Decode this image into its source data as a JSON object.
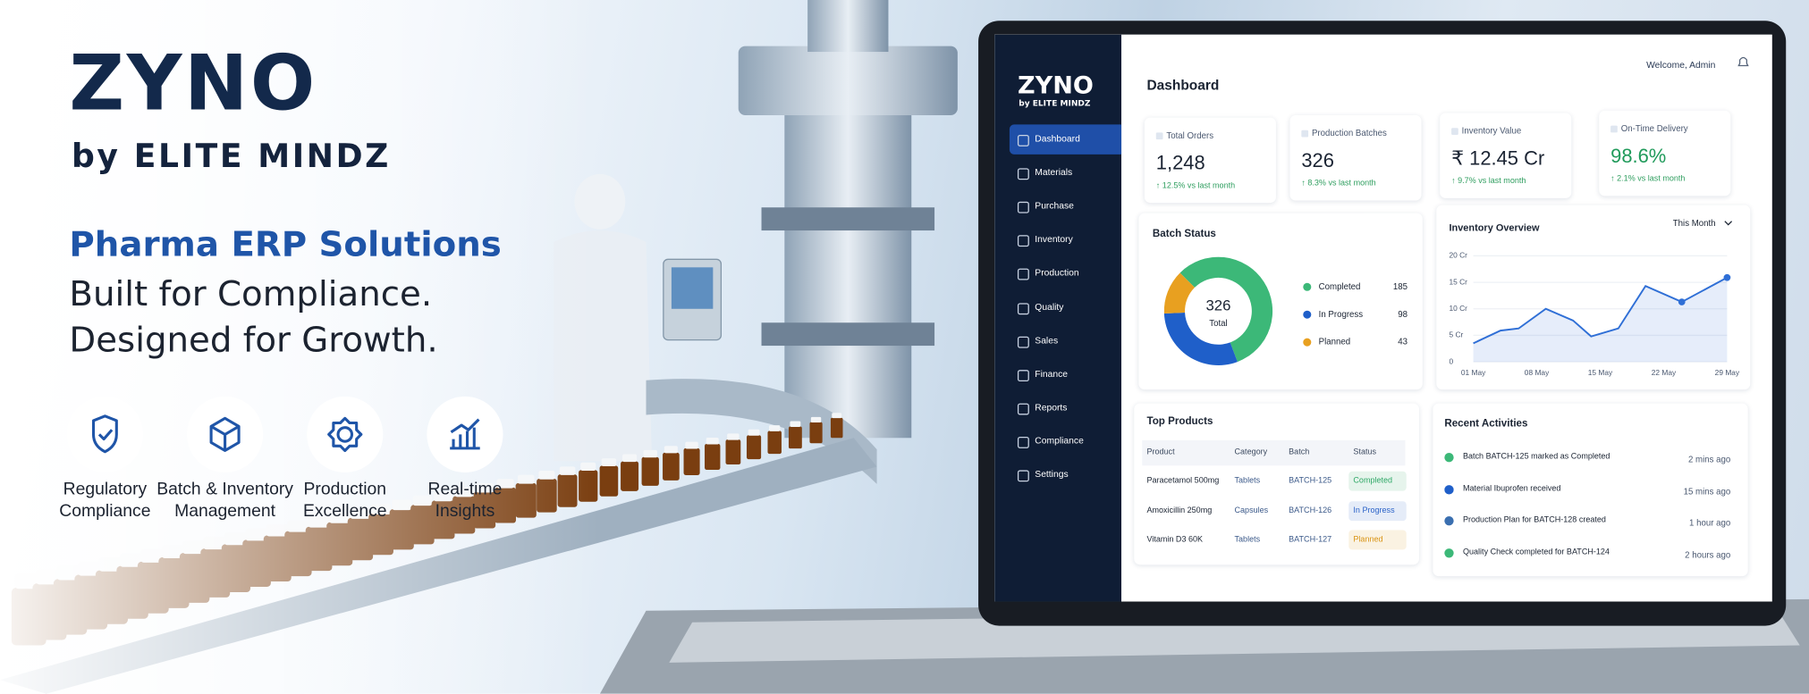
{
  "brand": {
    "logo": "ZYNO",
    "byline": "by ELITE MINDZ"
  },
  "headline": {
    "title": "Pharma ERP Solutions",
    "lines": [
      "Built for Compliance.",
      "Designed for Growth."
    ]
  },
  "features": [
    {
      "lines": [
        "Regulatory",
        "Compliance"
      ]
    },
    {
      "lines": [
        "Batch & Inventory",
        "Management"
      ]
    },
    {
      "lines": [
        "Production",
        "Excellence"
      ]
    },
    {
      "lines": [
        "Real-time",
        "Insights"
      ]
    }
  ],
  "dashboard": {
    "sidebar": {
      "logo": "ZYNO",
      "byline": "by ELITE MINDZ",
      "active": 0,
      "menu": [
        "Dashboard",
        "Materials",
        "Purchase",
        "Inventory",
        "Production",
        "Quality",
        "Sales",
        "Finance",
        "Reports",
        "Compliance",
        "Settings"
      ]
    },
    "title": "Dashboard",
    "welcome": "Welcome, Admin",
    "kpis": [
      {
        "label": "Total Orders",
        "value": "1,248",
        "change": "↑ 12.5% vs last month"
      },
      {
        "label": "Production Batches",
        "value": "326",
        "change": "↑ 8.3% vs last month"
      },
      {
        "label": "Inventory Value",
        "value": "₹ 12.45 Cr",
        "change": "↑ 9.7% vs last month"
      },
      {
        "label": "On-Time Delivery",
        "value": "98.6%",
        "change": "↑ 2.1% vs last month",
        "color": "#1f9a5a"
      }
    ],
    "top_products": {
      "title": "Top Products",
      "columns": [
        "Product",
        "Category",
        "Batch",
        "Status"
      ],
      "rows": [
        {
          "cells": [
            "Paracetamol 500mg",
            "Tablets",
            "BATCH-125",
            "Completed"
          ],
          "status_color": "#2fa866"
        },
        {
          "cells": [
            "Amoxicillin 250mg",
            "Capsules",
            "BATCH-126",
            "In Progress"
          ],
          "status_color": "#2b63c8"
        },
        {
          "cells": [
            "Vitamin D3 60K",
            "Tablets",
            "BATCH-127",
            "Planned"
          ],
          "status_color": "#d99414"
        }
      ]
    },
    "recent_activities": {
      "title": "Recent Activities",
      "items": [
        {
          "text": "Batch BATCH-125 marked as Completed",
          "time": "2 mins ago",
          "color": "#3cb878"
        },
        {
          "text": "Material Ibuprofen received",
          "time": "15 mins ago",
          "color": "#1f5fc9"
        },
        {
          "text": "Production Plan for BATCH-128 created",
          "time": "1 hour ago",
          "color": "#3a6fb0"
        },
        {
          "text": "Quality Check completed for BATCH-124",
          "time": "2 hours ago",
          "color": "#3cb878"
        }
      ]
    }
  },
  "chart_data": [
    {
      "type": "donut",
      "title": "Batch Status",
      "categories": [
        "Completed",
        "In Progress",
        "Planned"
      ],
      "values": [
        185,
        98,
        43
      ],
      "colors": [
        "#3cb878",
        "#1f5fc9",
        "#e8a020"
      ],
      "center_value": 326,
      "center_label": "Total"
    },
    {
      "type": "line",
      "title": "Inventory Overview",
      "filter": "This Month",
      "x": [
        1,
        4,
        6,
        9,
        12,
        14,
        17,
        20,
        24,
        29
      ],
      "values": [
        3.5,
        5.9,
        6.3,
        10,
        7.8,
        4.8,
        6.3,
        14.3,
        11.3,
        15.9
      ],
      "color": "#2f6fd6",
      "highlighted_points": [
        8,
        9
      ],
      "xlim": [
        1,
        29
      ],
      "xticks": [
        {
          "value": 1,
          "label": "01 May"
        },
        {
          "value": 8,
          "label": "08 May"
        },
        {
          "value": 15,
          "label": "15 May"
        },
        {
          "value": 22,
          "label": "22 May"
        },
        {
          "value": 29,
          "label": "29 May"
        }
      ],
      "ylim": [
        0,
        20
      ],
      "yticks": [
        0,
        {
          "value": 5,
          "label": "5 Cr"
        },
        {
          "value": 10,
          "label": "10 Cr"
        },
        {
          "value": 15,
          "label": "15 Cr"
        },
        {
          "value": 20,
          "label": "20 Cr"
        }
      ]
    }
  ]
}
